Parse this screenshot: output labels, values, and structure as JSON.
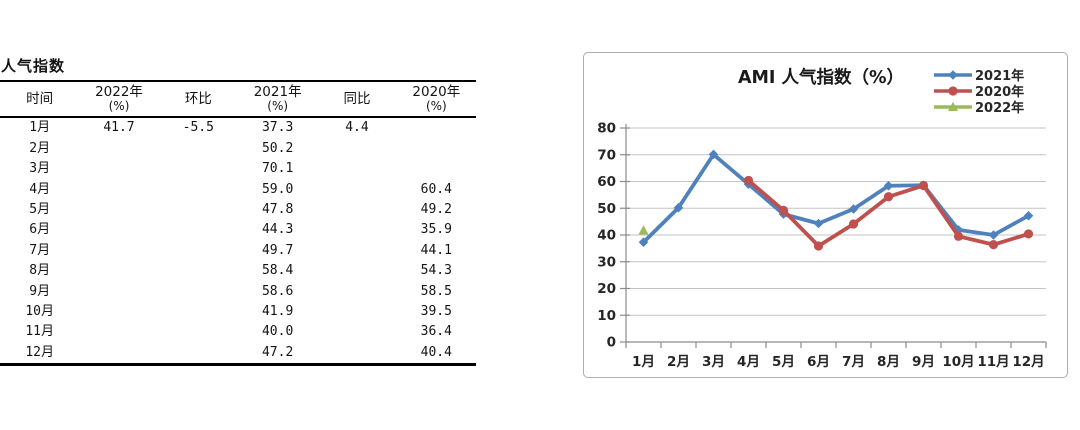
{
  "table": {
    "title": "人气指数",
    "columns": [
      {
        "label": "时间",
        "sub": ""
      },
      {
        "label": "2022年",
        "sub": "(%)"
      },
      {
        "label": "环比",
        "sub": ""
      },
      {
        "label": "2021年",
        "sub": "(%)"
      },
      {
        "label": "同比",
        "sub": ""
      },
      {
        "label": "2020年",
        "sub": "(%)"
      }
    ],
    "rows": [
      [
        "1月",
        "41.7",
        "-5.5",
        "37.3",
        "4.4",
        ""
      ],
      [
        "2月",
        "",
        "",
        "50.2",
        "",
        ""
      ],
      [
        "3月",
        "",
        "",
        "70.1",
        "",
        ""
      ],
      [
        "4月",
        "",
        "",
        "59.0",
        "",
        "60.4"
      ],
      [
        "5月",
        "",
        "",
        "47.8",
        "",
        "49.2"
      ],
      [
        "6月",
        "",
        "",
        "44.3",
        "",
        "35.9"
      ],
      [
        "7月",
        "",
        "",
        "49.7",
        "",
        "44.1"
      ],
      [
        "8月",
        "",
        "",
        "58.4",
        "",
        "54.3"
      ],
      [
        "9月",
        "",
        "",
        "58.6",
        "",
        "58.5"
      ],
      [
        "10月",
        "",
        "",
        "41.9",
        "",
        "39.5"
      ],
      [
        "11月",
        "",
        "",
        "40.0",
        "",
        "36.4"
      ],
      [
        "12月",
        "",
        "",
        "47.2",
        "",
        "40.4"
      ]
    ]
  },
  "chart_data": {
    "type": "line",
    "title": "AMI 人气指数（%）",
    "categories": [
      "1月",
      "2月",
      "3月",
      "4月",
      "5月",
      "6月",
      "7月",
      "8月",
      "9月",
      "10月",
      "11月",
      "12月"
    ],
    "series": [
      {
        "name": "2021年",
        "color": "#4F81BD",
        "marker": "diamond",
        "values": [
          37.3,
          50.2,
          70.1,
          59.0,
          47.8,
          44.3,
          49.7,
          58.4,
          58.6,
          41.9,
          40.0,
          47.2
        ]
      },
      {
        "name": "2020年",
        "color": "#C0504D",
        "marker": "circle",
        "values": [
          null,
          null,
          null,
          60.4,
          49.2,
          35.9,
          44.1,
          54.3,
          58.5,
          39.5,
          36.4,
          40.4
        ]
      },
      {
        "name": "2022年",
        "color": "#9BBB59",
        "marker": "triangle",
        "values": [
          41.7,
          null,
          null,
          null,
          null,
          null,
          null,
          null,
          null,
          null,
          null,
          null
        ]
      }
    ],
    "ylim": [
      0,
      80
    ],
    "ytick_step": 10,
    "grid": true,
    "legend_position": "top-right",
    "grid_color": "#c3c3c3",
    "axis_color": "#8c8c8c",
    "label_color": "#262626"
  }
}
